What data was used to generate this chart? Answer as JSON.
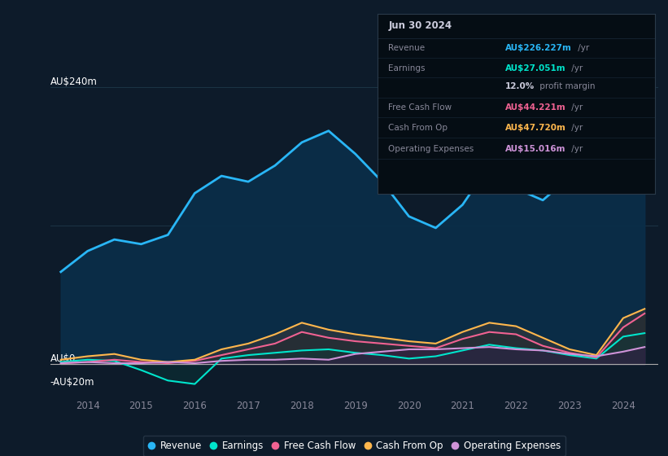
{
  "background_color": "#0d1b2a",
  "plot_bg_color": "#0d1b2a",
  "ylabel_top": "AU$240m",
  "ylabel_zero": "AU$0",
  "ylabel_neg": "-AU$20m",
  "years": [
    2013.5,
    2014.0,
    2014.5,
    2015.0,
    2015.5,
    2016.0,
    2016.5,
    2017.0,
    2017.5,
    2018.0,
    2018.5,
    2019.0,
    2019.5,
    2020.0,
    2020.5,
    2021.0,
    2021.5,
    2022.0,
    2022.5,
    2023.0,
    2023.5,
    2024.0,
    2024.4
  ],
  "revenue": [
    80,
    98,
    108,
    104,
    112,
    148,
    163,
    158,
    172,
    192,
    202,
    182,
    158,
    128,
    118,
    138,
    172,
    152,
    142,
    162,
    182,
    208,
    226
  ],
  "earnings": [
    2,
    4,
    3,
    -5,
    -14,
    -17,
    5,
    8,
    10,
    12,
    13,
    10,
    8,
    5,
    7,
    12,
    17,
    14,
    12,
    8,
    5,
    24,
    27
  ],
  "free_cash_flow": [
    1,
    2,
    4,
    2,
    1,
    3,
    8,
    13,
    18,
    28,
    23,
    20,
    18,
    16,
    14,
    22,
    28,
    26,
    16,
    10,
    6,
    32,
    44
  ],
  "cash_from_op": [
    4,
    7,
    9,
    4,
    2,
    4,
    13,
    18,
    26,
    36,
    30,
    26,
    23,
    20,
    18,
    28,
    36,
    33,
    23,
    13,
    8,
    40,
    48
  ],
  "operating_expenses": [
    1,
    2,
    1,
    1,
    2,
    1,
    3,
    4,
    4,
    5,
    4,
    9,
    11,
    13,
    13,
    14,
    15,
    13,
    12,
    9,
    7,
    11,
    15
  ],
  "revenue_color": "#29b6f6",
  "earnings_color": "#00e5cc",
  "free_cash_flow_color": "#f06292",
  "cash_from_op_color": "#ffb74d",
  "operating_expenses_color": "#ce93d8",
  "revenue_fill_color": "#0a2e4a",
  "grid_color": "#1e3a4a",
  "axis_label_color": "#888899",
  "x_ticks": [
    2014,
    2015,
    2016,
    2017,
    2018,
    2019,
    2020,
    2021,
    2022,
    2023,
    2024
  ],
  "ylim_min": -28,
  "ylim_max": 256,
  "table_data": {
    "date": "Jun 30 2024",
    "revenue_val": "AU$226.227m",
    "earnings_val": "AU$27.051m",
    "profit_margin": "12.0%",
    "fcf_val": "AU$44.221m",
    "cfop_val": "AU$47.720m",
    "opex_val": "AU$15.016m"
  }
}
